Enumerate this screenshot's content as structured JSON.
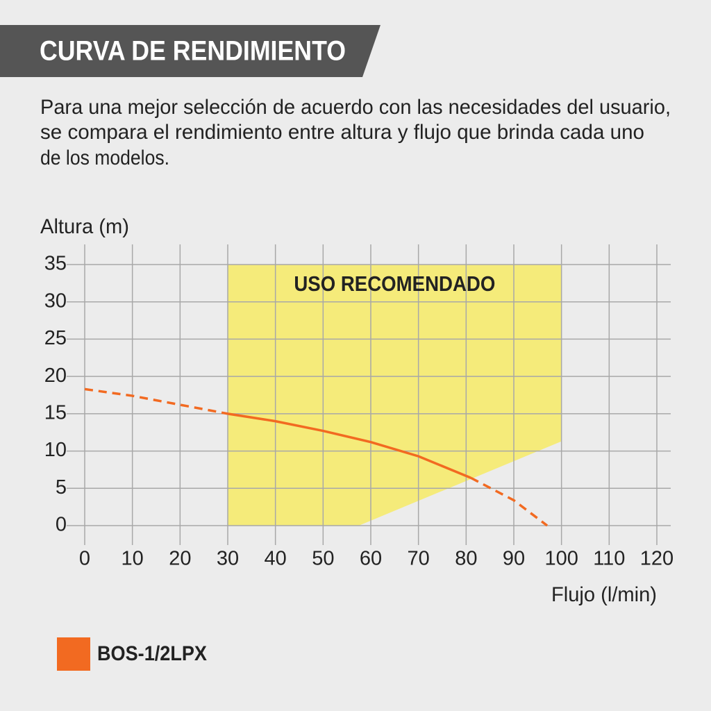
{
  "chart_data": {
    "type": "line",
    "title": "CURVA DE RENDIMIENTO",
    "description": [
      "Para una mejor selección de acuerdo con las necesidades del usuario,",
      "se compara el rendimiento entre altura y flujo que brinda cada uno",
      "de los modelos."
    ],
    "y_label": "Altura (m)",
    "x_label": "Flujo (l/min)",
    "xlim": [
      0,
      120
    ],
    "xticks": [
      0,
      10,
      20,
      30,
      40,
      50,
      60,
      70,
      80,
      90,
      100,
      110,
      120
    ],
    "ylim": [
      0,
      35
    ],
    "yticks": [
      0,
      5,
      10,
      15,
      20,
      25,
      30,
      35
    ],
    "grid": true,
    "recommended_region": {
      "label": "USO RECOMENDADO",
      "color": "#f5eb7a",
      "x": [
        30,
        100,
        100,
        57.5,
        30
      ],
      "y": [
        35,
        35,
        11.3,
        0,
        0
      ]
    },
    "series": [
      {
        "name": "BOS-1/2LPX",
        "color": "#f26a21",
        "segments": [
          {
            "style": "dashed",
            "x": [
              0,
              10,
              20,
              30
            ],
            "y": [
              18.3,
              17.4,
              16.2,
              15
            ]
          },
          {
            "style": "solid",
            "x": [
              30,
              40,
              50,
              60,
              70,
              81
            ],
            "y": [
              15,
              14,
              12.7,
              11.2,
              9.3,
              6.4
            ]
          },
          {
            "style": "dashed",
            "x": [
              81,
              90,
              97
            ],
            "y": [
              6.4,
              3.4,
              0
            ]
          }
        ]
      }
    ]
  }
}
